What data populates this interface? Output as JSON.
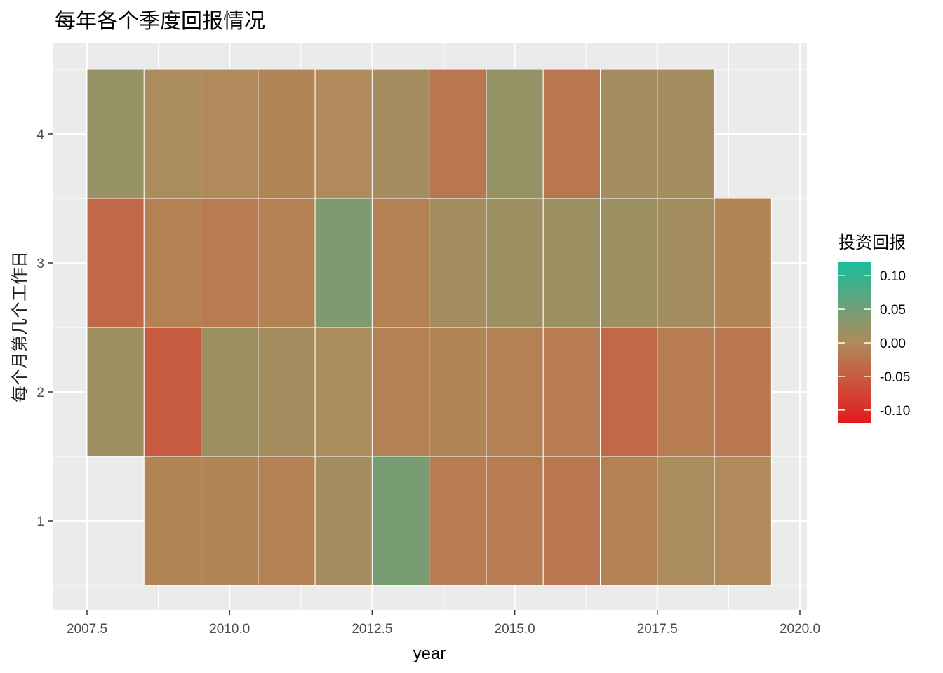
{
  "chart_data": {
    "type": "heatmap",
    "title": "每年各个季度回报情况",
    "xlabel": "year",
    "ylabel": "每个月第几个工作日",
    "xlim": [
      2007.5,
      2020.0
    ],
    "x_ticks": [
      "2007.5",
      "2010.0",
      "2012.5",
      "2015.0",
      "2017.5",
      "2020.0"
    ],
    "y_ticks": [
      "1",
      "2",
      "3",
      "4"
    ],
    "grid": true,
    "legend": {
      "title": "投资回报",
      "position": "right",
      "labels": [
        "0.10",
        "0.05",
        "0.00",
        "-0.05",
        "-0.10"
      ],
      "low_color": "#e41a1c",
      "mid_color": "#b08a5a",
      "high_color": "#1abc9c"
    },
    "cells": [
      {
        "year": 2008,
        "quarter": 4,
        "value": 0.02
      },
      {
        "year": 2009,
        "quarter": 4,
        "value": 0.005
      },
      {
        "year": 2010,
        "quarter": 4,
        "value": 0.0
      },
      {
        "year": 2011,
        "quarter": 4,
        "value": -0.005
      },
      {
        "year": 2012,
        "quarter": 4,
        "value": 0.0
      },
      {
        "year": 2013,
        "quarter": 4,
        "value": 0.01
      },
      {
        "year": 2014,
        "quarter": 4,
        "value": -0.02
      },
      {
        "year": 2015,
        "quarter": 4,
        "value": 0.02
      },
      {
        "year": 2016,
        "quarter": 4,
        "value": -0.02
      },
      {
        "year": 2017,
        "quarter": 4,
        "value": 0.01
      },
      {
        "year": 2018,
        "quarter": 4,
        "value": 0.01
      },
      {
        "year": 2008,
        "quarter": 3,
        "value": -0.035
      },
      {
        "year": 2009,
        "quarter": 3,
        "value": -0.01
      },
      {
        "year": 2010,
        "quarter": 3,
        "value": -0.015
      },
      {
        "year": 2011,
        "quarter": 3,
        "value": -0.01
      },
      {
        "year": 2012,
        "quarter": 3,
        "value": 0.04
      },
      {
        "year": 2013,
        "quarter": 3,
        "value": -0.01
      },
      {
        "year": 2014,
        "quarter": 3,
        "value": 0.01
      },
      {
        "year": 2015,
        "quarter": 3,
        "value": 0.015
      },
      {
        "year": 2016,
        "quarter": 3,
        "value": 0.015
      },
      {
        "year": 2017,
        "quarter": 3,
        "value": 0.015
      },
      {
        "year": 2018,
        "quarter": 3,
        "value": 0.01
      },
      {
        "year": 2019,
        "quarter": 3,
        "value": -0.005
      },
      {
        "year": 2008,
        "quarter": 2,
        "value": 0.015
      },
      {
        "year": 2009,
        "quarter": 2,
        "value": -0.05
      },
      {
        "year": 2010,
        "quarter": 2,
        "value": 0.015
      },
      {
        "year": 2011,
        "quarter": 2,
        "value": 0.01
      },
      {
        "year": 2012,
        "quarter": 2,
        "value": 0.005
      },
      {
        "year": 2013,
        "quarter": 2,
        "value": -0.01
      },
      {
        "year": 2014,
        "quarter": 2,
        "value": -0.005
      },
      {
        "year": 2015,
        "quarter": 2,
        "value": -0.01
      },
      {
        "year": 2016,
        "quarter": 2,
        "value": -0.015
      },
      {
        "year": 2017,
        "quarter": 2,
        "value": -0.035
      },
      {
        "year": 2018,
        "quarter": 2,
        "value": -0.015
      },
      {
        "year": 2019,
        "quarter": 2,
        "value": -0.02
      },
      {
        "year": 2009,
        "quarter": 1,
        "value": -0.005
      },
      {
        "year": 2010,
        "quarter": 1,
        "value": -0.005
      },
      {
        "year": 2011,
        "quarter": 1,
        "value": -0.01
      },
      {
        "year": 2012,
        "quarter": 1,
        "value": 0.01
      },
      {
        "year": 2013,
        "quarter": 1,
        "value": 0.045
      },
      {
        "year": 2014,
        "quarter": 1,
        "value": -0.015
      },
      {
        "year": 2015,
        "quarter": 1,
        "value": -0.015
      },
      {
        "year": 2016,
        "quarter": 1,
        "value": -0.02
      },
      {
        "year": 2017,
        "quarter": 1,
        "value": -0.01
      },
      {
        "year": 2018,
        "quarter": 1,
        "value": 0.005
      },
      {
        "year": 2019,
        "quarter": 1,
        "value": 0.0
      }
    ]
  }
}
